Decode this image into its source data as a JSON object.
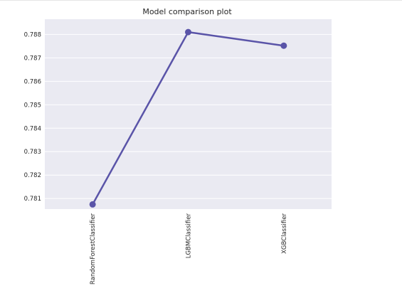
{
  "chart_data": {
    "type": "line",
    "title": "Model comparison plot",
    "xlabel": "",
    "ylabel": "",
    "categories": [
      "RandomForestClassifier",
      "LGBMClassifier",
      "XGBClassifier"
    ],
    "series": [
      {
        "values": [
          0.78075,
          0.7881,
          0.78752
        ]
      }
    ],
    "yticks": [
      "0.781",
      "0.782",
      "0.783",
      "0.784",
      "0.785",
      "0.786",
      "0.787",
      "0.788"
    ],
    "ylim": [
      0.78055,
      0.78865
    ],
    "grid": true,
    "legend": "none",
    "colors": {
      "line": "#5a54a8",
      "background": "#eaeaf2",
      "grid": "#ffffff"
    }
  }
}
